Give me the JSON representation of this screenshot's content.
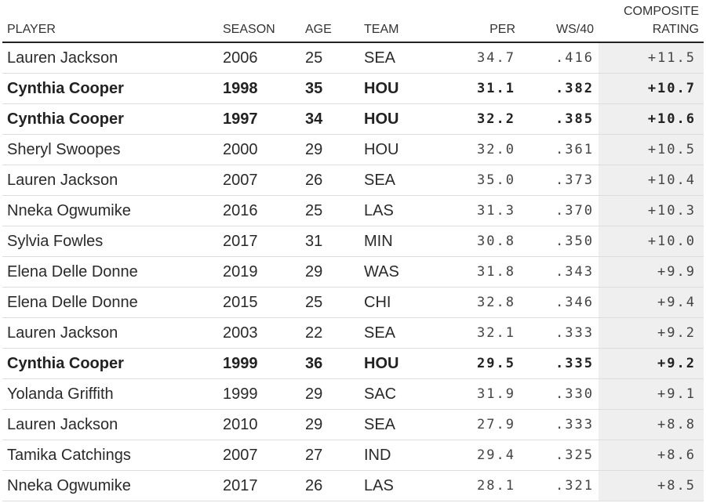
{
  "chart_data": {
    "type": "table",
    "columns": [
      {
        "key": "player",
        "label": "PLAYER",
        "align": "left"
      },
      {
        "key": "season",
        "label": "SEASON",
        "align": "left"
      },
      {
        "key": "age",
        "label": "AGE",
        "align": "left"
      },
      {
        "key": "team",
        "label": "TEAM",
        "align": "left"
      },
      {
        "key": "per",
        "label": "PER",
        "align": "right"
      },
      {
        "key": "ws40",
        "label": "WS/40",
        "align": "right"
      },
      {
        "key": "composite",
        "label": "COMPOSITE RATING",
        "align": "right"
      }
    ],
    "rows": [
      {
        "player": "Lauren Jackson",
        "season": "2006",
        "age": "25",
        "team": "SEA",
        "per": "34.7",
        "ws40": ".416",
        "composite": "+11.5",
        "bold": false
      },
      {
        "player": "Cynthia Cooper",
        "season": "1998",
        "age": "35",
        "team": "HOU",
        "per": "31.1",
        "ws40": ".382",
        "composite": "+10.7",
        "bold": true
      },
      {
        "player": "Cynthia Cooper",
        "season": "1997",
        "age": "34",
        "team": "HOU",
        "per": "32.2",
        "ws40": ".385",
        "composite": "+10.6",
        "bold": true
      },
      {
        "player": "Sheryl Swoopes",
        "season": "2000",
        "age": "29",
        "team": "HOU",
        "per": "32.0",
        "ws40": ".361",
        "composite": "+10.5",
        "bold": false
      },
      {
        "player": "Lauren Jackson",
        "season": "2007",
        "age": "26",
        "team": "SEA",
        "per": "35.0",
        "ws40": ".373",
        "composite": "+10.4",
        "bold": false
      },
      {
        "player": "Nneka Ogwumike",
        "season": "2016",
        "age": "25",
        "team": "LAS",
        "per": "31.3",
        "ws40": ".370",
        "composite": "+10.3",
        "bold": false
      },
      {
        "player": "Sylvia Fowles",
        "season": "2017",
        "age": "31",
        "team": "MIN",
        "per": "30.8",
        "ws40": ".350",
        "composite": "+10.0",
        "bold": false
      },
      {
        "player": "Elena Delle Donne",
        "season": "2019",
        "age": "29",
        "team": "WAS",
        "per": "31.8",
        "ws40": ".343",
        "composite": "+9.9",
        "bold": false
      },
      {
        "player": "Elena Delle Donne",
        "season": "2015",
        "age": "25",
        "team": "CHI",
        "per": "32.8",
        "ws40": ".346",
        "composite": "+9.4",
        "bold": false
      },
      {
        "player": "Lauren Jackson",
        "season": "2003",
        "age": "22",
        "team": "SEA",
        "per": "32.1",
        "ws40": ".333",
        "composite": "+9.2",
        "bold": false
      },
      {
        "player": "Cynthia Cooper",
        "season": "1999",
        "age": "36",
        "team": "HOU",
        "per": "29.5",
        "ws40": ".335",
        "composite": "+9.2",
        "bold": true
      },
      {
        "player": "Yolanda Griffith",
        "season": "1999",
        "age": "29",
        "team": "SAC",
        "per": "31.9",
        "ws40": ".330",
        "composite": "+9.1",
        "bold": false
      },
      {
        "player": "Lauren Jackson",
        "season": "2010",
        "age": "29",
        "team": "SEA",
        "per": "27.9",
        "ws40": ".333",
        "composite": "+8.8",
        "bold": false
      },
      {
        "player": "Tamika Catchings",
        "season": "2007",
        "age": "27",
        "team": "IND",
        "per": "29.4",
        "ws40": ".325",
        "composite": "+8.6",
        "bold": false
      },
      {
        "player": "Nneka Ogwumike",
        "season": "2017",
        "age": "26",
        "team": "LAS",
        "per": "28.1",
        "ws40": ".321",
        "composite": "+8.5",
        "bold": false
      }
    ]
  },
  "colors": {
    "text": "#222222",
    "rule_heavy": "#222222",
    "rule_light": "#dddddd",
    "composite_column_bg": "#efefef"
  }
}
